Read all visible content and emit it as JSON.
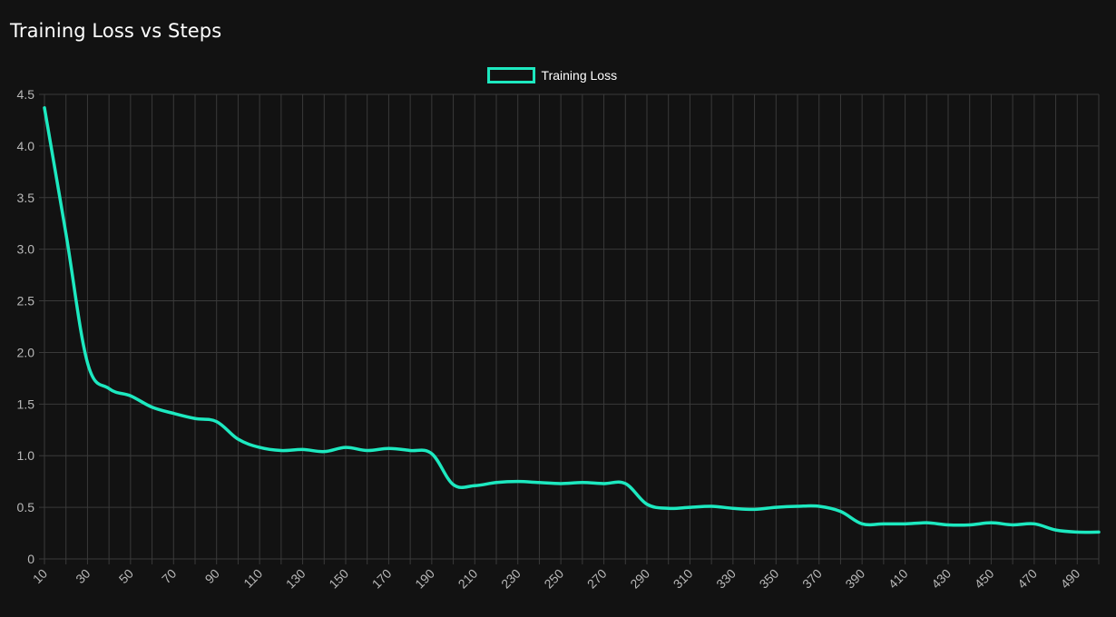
{
  "page": {
    "title": "Training Loss vs Steps"
  },
  "colors": {
    "background": "#121212",
    "line": "#1de9c0",
    "grid": "#3a3a3a",
    "tick_text": "#b8b8b8",
    "legend_text": "#ffffff"
  },
  "chart_data": {
    "type": "line",
    "title": "Training Loss vs Steps",
    "xlabel": "",
    "ylabel": "",
    "legend_position": "top-center",
    "grid": true,
    "x": [
      10,
      20,
      30,
      40,
      50,
      60,
      70,
      80,
      90,
      100,
      110,
      120,
      130,
      140,
      150,
      160,
      170,
      180,
      190,
      200,
      210,
      220,
      230,
      240,
      250,
      260,
      270,
      280,
      290,
      300,
      310,
      320,
      330,
      340,
      350,
      360,
      370,
      380,
      390,
      400,
      410,
      420,
      430,
      440,
      450,
      460,
      470,
      480,
      490,
      500
    ],
    "x_tick_labels": [
      "10",
      "30",
      "50",
      "70",
      "90",
      "110",
      "130",
      "150",
      "170",
      "190",
      "210",
      "230",
      "250",
      "270",
      "290",
      "310",
      "330",
      "350",
      "370",
      "390",
      "410",
      "430",
      "450",
      "470",
      "490"
    ],
    "ylim": [
      0,
      4.5
    ],
    "y_ticks": [
      "0",
      "0.5",
      "1.0",
      "1.5",
      "2.0",
      "2.5",
      "3.0",
      "3.5",
      "4.0",
      "4.5"
    ],
    "series": [
      {
        "name": "Training Loss",
        "color": "#1de9c0",
        "values": [
          4.37,
          3.15,
          1.9,
          1.65,
          1.58,
          1.47,
          1.41,
          1.36,
          1.33,
          1.16,
          1.08,
          1.05,
          1.06,
          1.04,
          1.08,
          1.05,
          1.07,
          1.05,
          1.02,
          0.72,
          0.71,
          0.74,
          0.75,
          0.74,
          0.73,
          0.74,
          0.73,
          0.73,
          0.53,
          0.49,
          0.5,
          0.51,
          0.49,
          0.48,
          0.5,
          0.51,
          0.51,
          0.46,
          0.34,
          0.34,
          0.34,
          0.35,
          0.33,
          0.33,
          0.35,
          0.33,
          0.34,
          0.28,
          0.26,
          0.26
        ]
      }
    ]
  }
}
